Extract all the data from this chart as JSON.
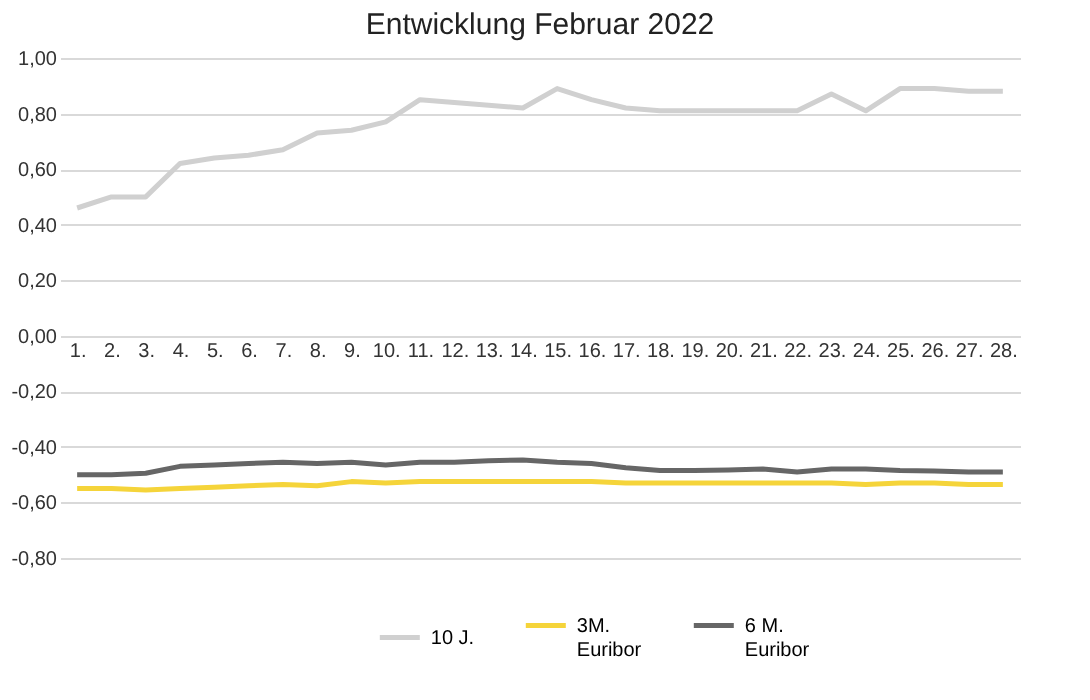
{
  "chart_data": {
    "type": "line",
    "title": "Entwicklung Februar 2022",
    "categories": [
      "1.",
      "2.",
      "3.",
      "4.",
      "5.",
      "6.",
      "7.",
      "8.",
      "9.",
      "10.",
      "11.",
      "12.",
      "13.",
      "14.",
      "15.",
      "16.",
      "17.",
      "18.",
      "19.",
      "20.",
      "21.",
      "22.",
      "23.",
      "24.",
      "25.",
      "26.",
      "27.",
      "28."
    ],
    "series": [
      {
        "name": "10 J.",
        "color": "#d0d0d0",
        "values": [
          0.46,
          0.5,
          0.5,
          0.62,
          0.64,
          0.65,
          0.67,
          0.73,
          0.74,
          0.77,
          0.85,
          0.84,
          0.83,
          0.82,
          0.89,
          0.85,
          0.82,
          0.81,
          0.81,
          0.81,
          0.81,
          0.81,
          0.87,
          0.81,
          0.89,
          0.89,
          0.88,
          0.88
        ]
      },
      {
        "name": "3M.\nEuribor",
        "color": "#f5d43a",
        "values": [
          -0.55,
          -0.55,
          -0.555,
          -0.55,
          -0.545,
          -0.54,
          -0.535,
          -0.54,
          -0.525,
          -0.53,
          -0.525,
          -0.525,
          -0.525,
          -0.525,
          -0.525,
          -0.525,
          -0.53,
          -0.53,
          -0.53,
          -0.53,
          -0.53,
          -0.53,
          -0.53,
          -0.535,
          -0.53,
          -0.53,
          -0.535,
          -0.535
        ]
      },
      {
        "name": "6 M.\nEuribor",
        "color": "#666666",
        "values": [
          -0.5,
          -0.5,
          -0.495,
          -0.47,
          -0.465,
          -0.46,
          -0.455,
          -0.46,
          -0.455,
          -0.465,
          -0.455,
          -0.455,
          -0.45,
          -0.447,
          -0.455,
          -0.46,
          -0.475,
          -0.485,
          -0.485,
          -0.483,
          -0.48,
          -0.49,
          -0.48,
          -0.48,
          -0.485,
          -0.487,
          -0.49,
          -0.49
        ]
      }
    ],
    "ylim": [
      -0.8,
      1.0
    ],
    "yticks": [
      {
        "value": -0.8,
        "label": "-0,80"
      },
      {
        "value": -0.6,
        "label": "-0,60"
      },
      {
        "value": -0.4,
        "label": "-0,40"
      },
      {
        "value": -0.2,
        "label": "-0,20"
      },
      {
        "value": 0,
        "label": "0,00"
      },
      {
        "value": 0.2,
        "label": "0,20"
      },
      {
        "value": 0.4,
        "label": "0,40"
      },
      {
        "value": 0.6,
        "label": "0,60"
      },
      {
        "value": 0.8,
        "label": "0,80"
      },
      {
        "value": 1.0,
        "label": "1,00"
      }
    ],
    "grid": "y",
    "legend": "bottom",
    "line_style": "solid",
    "marker": "none"
  }
}
